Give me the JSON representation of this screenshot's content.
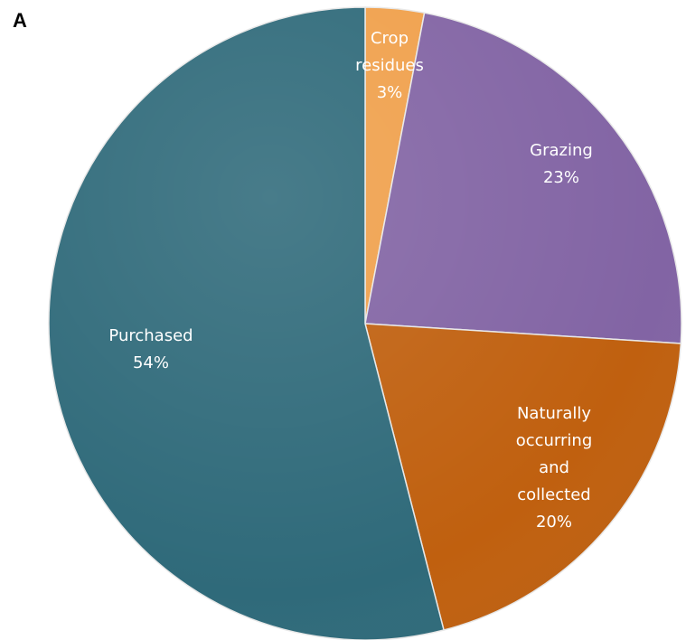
{
  "panel_label": "A",
  "chart_data": {
    "type": "pie",
    "title": "",
    "slices": [
      {
        "name": "Crop residues",
        "value": 3,
        "label_lines": [
          "Crop",
          "residues",
          "3%"
        ],
        "color": "#f0a04b"
      },
      {
        "name": "Grazing",
        "value": 23,
        "label_lines": [
          "Grazing",
          "23%"
        ],
        "color": "#8264a4"
      },
      {
        "name": "Naturally occurring and collected",
        "value": 20,
        "label_lines": [
          "Naturally",
          "occurring",
          "and",
          "collected",
          "20%"
        ],
        "color": "#c0600f"
      },
      {
        "name": "Purchased",
        "value": 54,
        "label_lines": [
          "Purchased",
          "54%"
        ],
        "color": "#2f6a7a"
      }
    ],
    "start_angle": "12 o'clock",
    "direction": "clockwise",
    "legend": "none",
    "label_color": "#ffffff"
  }
}
